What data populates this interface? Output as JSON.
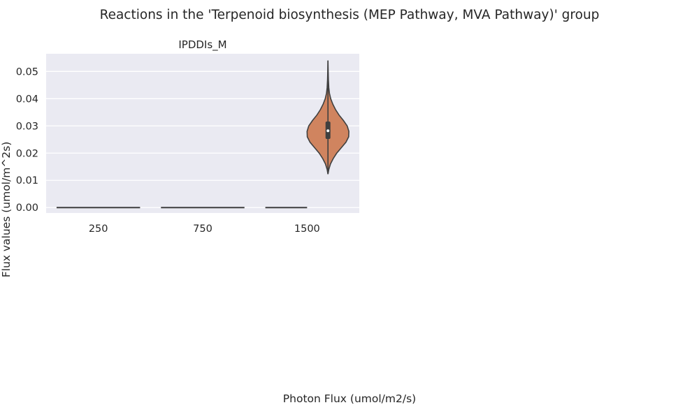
{
  "chart_data": {
    "type": "violin",
    "suptitle": "Reactions in the 'Terpenoid biosynthesis (MEP Pathway, MVA Pathway)' group",
    "panel_title": "IPDDIs_M",
    "xlabel": "Photon Flux (umol/m2/s)",
    "ylabel": "Flux values (umol/m^2s)",
    "categories": [
      "250",
      "750",
      "1500"
    ],
    "ylim": [
      -0.002,
      0.0565
    ],
    "yticks": [
      0.0,
      0.01,
      0.02,
      0.03,
      0.04,
      0.05
    ],
    "ytick_labels": [
      "0.00",
      "0.01",
      "0.02",
      "0.03",
      "0.04",
      "0.05"
    ],
    "grid": true,
    "colors": {
      "background": "#eaeaf2",
      "grid": "#ffffff",
      "edge": "#3f3f3f",
      "violin_1500": "#d0845f"
    },
    "violins": [
      {
        "category": "250",
        "all_values": 0.0
      },
      {
        "category": "750",
        "all_values": 0.0
      },
      {
        "category": "1500",
        "zero_group_share": "partial",
        "min": 0.0123,
        "q1": 0.0252,
        "median": 0.0282,
        "q3": 0.0316,
        "max": 0.054,
        "density_profile": [
          [
            0.0123,
            0.0
          ],
          [
            0.014,
            0.04
          ],
          [
            0.016,
            0.12
          ],
          [
            0.018,
            0.25
          ],
          [
            0.02,
            0.42
          ],
          [
            0.022,
            0.64
          ],
          [
            0.024,
            0.86
          ],
          [
            0.026,
            0.99
          ],
          [
            0.028,
            1.0
          ],
          [
            0.03,
            0.92
          ],
          [
            0.032,
            0.74
          ],
          [
            0.034,
            0.53
          ],
          [
            0.036,
            0.36
          ],
          [
            0.038,
            0.23
          ],
          [
            0.04,
            0.13
          ],
          [
            0.042,
            0.07
          ],
          [
            0.044,
            0.04
          ],
          [
            0.047,
            0.02
          ],
          [
            0.05,
            0.01
          ],
          [
            0.054,
            0.0
          ]
        ]
      }
    ]
  }
}
